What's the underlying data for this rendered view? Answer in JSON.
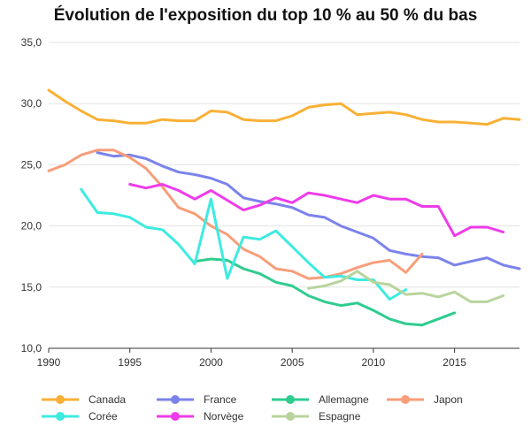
{
  "chart_data": {
    "type": "line",
    "title": "Évolution de l'exposition du top 10 % au 50 % du bas",
    "xlabel": "",
    "ylabel": "",
    "xlim": [
      1990,
      2019
    ],
    "ylim": [
      10,
      35
    ],
    "x_ticks": [
      1990,
      1995,
      2000,
      2005,
      2010,
      2015
    ],
    "y_ticks": [
      10,
      15,
      20,
      25,
      30,
      35
    ],
    "y_tick_labels": [
      "10,0",
      "15,0",
      "20,0",
      "25,0",
      "30,0",
      "35,0"
    ],
    "grid": "horizontal",
    "legend_position": "bottom",
    "series": [
      {
        "name": "Canada",
        "color": "#F9B035",
        "x": [
          1990,
          1991,
          1992,
          1993,
          1994,
          1995,
          1996,
          1997,
          1998,
          1999,
          2000,
          2001,
          2002,
          2003,
          2004,
          2005,
          2006,
          2007,
          2008,
          2009,
          2010,
          2011,
          2012,
          2013,
          2014,
          2015,
          2016,
          2017,
          2018,
          2019
        ],
        "y": [
          31.1,
          30.2,
          29.4,
          28.7,
          28.6,
          28.4,
          28.4,
          28.7,
          28.6,
          28.6,
          29.4,
          29.3,
          28.7,
          28.6,
          28.6,
          29.0,
          29.7,
          29.9,
          30.0,
          29.1,
          29.2,
          29.3,
          29.1,
          28.7,
          28.5,
          28.5,
          28.4,
          28.3,
          28.8,
          28.7
        ]
      },
      {
        "name": "France",
        "color": "#7B83EB",
        "x": [
          1993,
          1994,
          1995,
          1996,
          1997,
          1998,
          1999,
          2000,
          2001,
          2002,
          2003,
          2004,
          2005,
          2006,
          2007,
          2008,
          2009,
          2010,
          2011,
          2012,
          2013,
          2014,
          2015,
          2016,
          2017,
          2018,
          2019
        ],
        "y": [
          26.0,
          25.7,
          25.8,
          25.5,
          24.9,
          24.4,
          24.2,
          23.9,
          23.4,
          22.3,
          22.0,
          21.8,
          21.5,
          20.9,
          20.7,
          20.0,
          19.5,
          19.0,
          18.0,
          17.7,
          17.5,
          17.4,
          16.8,
          17.1,
          17.4,
          16.8,
          16.5
        ]
      },
      {
        "name": "Allemagne",
        "color": "#2ECC8F",
        "x": [
          1999,
          2000,
          2001,
          2002,
          2003,
          2004,
          2005,
          2006,
          2007,
          2008,
          2009,
          2010,
          2011,
          2012,
          2013,
          2014,
          2015
        ],
        "y": [
          17.1,
          17.3,
          17.2,
          16.5,
          16.1,
          15.4,
          15.1,
          14.3,
          13.8,
          13.5,
          13.7,
          13.1,
          12.4,
          12.0,
          11.9,
          12.4,
          12.9
        ]
      },
      {
        "name": "Japon",
        "color": "#F79E7A",
        "x": [
          1990,
          1991,
          1992,
          1993,
          1994,
          1995,
          1996,
          1997,
          1998,
          1999,
          2000,
          2001,
          2002,
          2003,
          2004,
          2005,
          2006,
          2007,
          2008,
          2009,
          2010,
          2011,
          2012,
          2013
        ],
        "y": [
          24.5,
          25.0,
          25.8,
          26.2,
          26.2,
          25.6,
          24.7,
          23.2,
          21.5,
          21.0,
          20.0,
          19.3,
          18.1,
          17.5,
          16.5,
          16.3,
          15.7,
          15.8,
          16.1,
          16.6,
          17.0,
          17.2,
          16.2,
          17.7
        ]
      },
      {
        "name": "Corée",
        "color": "#3DEBE0",
        "x": [
          1992,
          1993,
          1994,
          1995,
          1996,
          1997,
          1998,
          1999,
          2000,
          2001,
          2002,
          2003,
          2004,
          2005,
          2006,
          2007,
          2008,
          2009,
          2010,
          2011,
          2012
        ],
        "y": [
          23.0,
          21.1,
          21.0,
          20.7,
          19.9,
          19.7,
          18.5,
          16.9,
          22.2,
          15.7,
          19.1,
          18.9,
          19.6,
          18.3,
          17.0,
          15.8,
          15.9,
          15.6,
          15.6,
          14.0,
          14.8
        ]
      },
      {
        "name": "Norvège",
        "color": "#EE3CEA",
        "x": [
          1995,
          1996,
          1997,
          1998,
          1999,
          2000,
          2001,
          2002,
          2003,
          2004,
          2005,
          2006,
          2007,
          2008,
          2009,
          2010,
          2011,
          2012,
          2013,
          2014,
          2015,
          2016,
          2017,
          2018
        ],
        "y": [
          23.4,
          23.1,
          23.4,
          22.9,
          22.2,
          22.9,
          22.1,
          21.3,
          21.7,
          22.3,
          21.9,
          22.7,
          22.5,
          22.2,
          21.9,
          22.5,
          22.2,
          22.2,
          21.6,
          21.6,
          19.2,
          19.9,
          19.9,
          19.5
        ]
      },
      {
        "name": "Espagne",
        "color": "#B8D49C",
        "x": [
          2006,
          2007,
          2008,
          2009,
          2010,
          2011,
          2012,
          2013,
          2014,
          2015,
          2016,
          2017,
          2018
        ],
        "y": [
          14.9,
          15.1,
          15.5,
          16.3,
          15.4,
          15.2,
          14.4,
          14.5,
          14.2,
          14.6,
          13.8,
          13.8,
          14.3
        ]
      }
    ]
  }
}
